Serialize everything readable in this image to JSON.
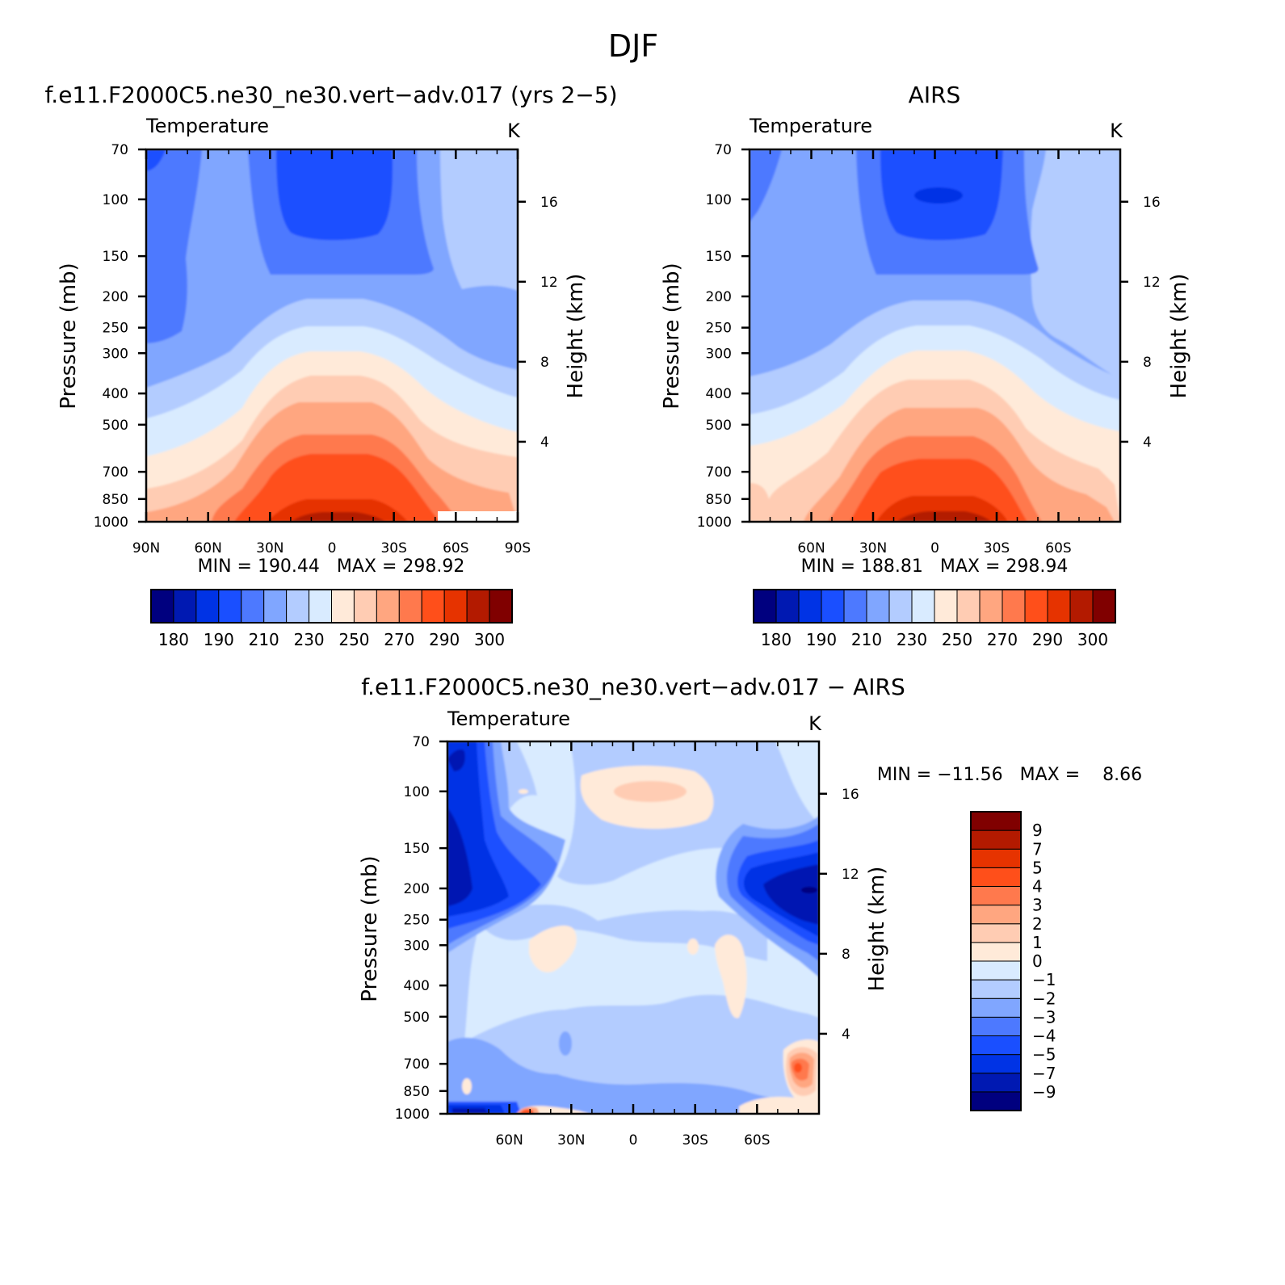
{
  "figure": {
    "title": "DJF"
  },
  "palettes": {
    "temperature": [
      "#00007f",
      "#0019b2",
      "#0033e5",
      "#1a4fff",
      "#4d79ff",
      "#80a6ff",
      "#b3ccff",
      "#d9ebff",
      "#ffead9",
      "#ffccb3",
      "#ffa680",
      "#ff794d",
      "#ff4f1a",
      "#e63300",
      "#b31a00",
      "#800000"
    ],
    "difference": [
      "#00007f",
      "#0019b2",
      "#0033e5",
      "#1a4fff",
      "#4d79ff",
      "#80a6ff",
      "#b3ccff",
      "#d9ebff",
      "#ffead9",
      "#ffccb3",
      "#ffa680",
      "#ff794d",
      "#ff4f1a",
      "#e63300",
      "#b31a00",
      "#800000"
    ]
  },
  "chart_data": [
    {
      "type": "heatmap",
      "title": "f.e11.F2000C5.ne30_ne30.vert−adv.017 (yrs 2−5)",
      "subtitle_left": "Temperature",
      "subtitle_right": "K",
      "ylabel": "Pressure (mb)",
      "y2label": "Height (km)",
      "x_ticks": [
        "90N",
        "60N",
        "30N",
        "0",
        "30S",
        "60S",
        "90S"
      ],
      "x_range": [
        90,
        -90
      ],
      "y_ticks": [
        "70",
        "100",
        "150",
        "200",
        "250",
        "300",
        "400",
        "500",
        "700",
        "850",
        "1000"
      ],
      "y_range_mb": [
        70,
        1000
      ],
      "y_scale": "log",
      "y2_ticks": [
        "16",
        "12",
        "8",
        "4"
      ],
      "min_max_text": "MIN = 190.44   MAX = 298.92",
      "min": 190.44,
      "max": 298.92,
      "colorbar": {
        "orientation": "horizontal",
        "labels": [
          "180",
          "190",
          "210",
          "230",
          "250",
          "270",
          "290",
          "300"
        ]
      }
    },
    {
      "type": "heatmap",
      "title": "AIRS",
      "subtitle_left": "Temperature",
      "subtitle_right": "K",
      "ylabel": "Pressure (mb)",
      "y2label": "Height (km)",
      "x_ticks": [
        "60N",
        "30N",
        "0",
        "30S",
        "60S"
      ],
      "x_range": [
        90,
        -90
      ],
      "y_ticks": [
        "70",
        "100",
        "150",
        "200",
        "250",
        "300",
        "400",
        "500",
        "700",
        "850",
        "1000"
      ],
      "y_range_mb": [
        70,
        1000
      ],
      "y_scale": "log",
      "y2_ticks": [
        "16",
        "12",
        "8",
        "4"
      ],
      "min_max_text": "MIN = 188.81   MAX = 298.94",
      "min": 188.81,
      "max": 298.94,
      "colorbar": {
        "orientation": "horizontal",
        "labels": [
          "180",
          "190",
          "210",
          "230",
          "250",
          "270",
          "290",
          "300"
        ]
      }
    },
    {
      "type": "heatmap",
      "title": "f.e11.F2000C5.ne30_ne30.vert−adv.017 − AIRS",
      "subtitle_left": "Temperature",
      "subtitle_right": "K",
      "ylabel": "Pressure (mb)",
      "y2label": "Height (km)",
      "x_ticks": [
        "60N",
        "30N",
        "0",
        "30S",
        "60S"
      ],
      "x_range": [
        90,
        -90
      ],
      "y_ticks": [
        "70",
        "100",
        "150",
        "200",
        "250",
        "300",
        "400",
        "500",
        "700",
        "850",
        "1000"
      ],
      "y_range_mb": [
        70,
        1000
      ],
      "y_scale": "log",
      "y2_ticks": [
        "16",
        "12",
        "8",
        "4"
      ],
      "min_max_text": "MIN = −11.56   MAX =    8.66",
      "min": -11.56,
      "max": 8.66,
      "colorbar": {
        "orientation": "vertical",
        "labels": [
          "9",
          "7",
          "5",
          "4",
          "3",
          "2",
          "1",
          "0",
          "−1",
          "−2",
          "−3",
          "−4",
          "−5",
          "−7",
          "−9"
        ]
      }
    }
  ]
}
